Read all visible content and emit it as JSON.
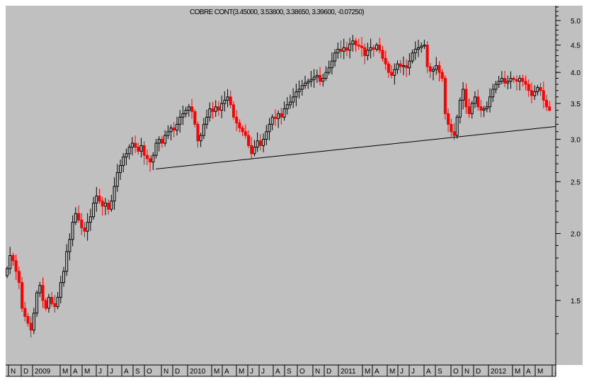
{
  "chart_data": {
    "type": "candlestick",
    "title": "COBRE CONT(3.45000, 3.53800, 3.38650, 3.39600, -0.07250)",
    "last_bar": {
      "open": 3.45,
      "high": 3.538,
      "low": 3.3865,
      "close": 3.396,
      "change": -0.0725
    },
    "y_scale": "log",
    "ylim": [
      1.2,
      5.3
    ],
    "y_ticks": [
      "1.5",
      "2.0",
      "2.5",
      "3.0",
      "3.5",
      "4.0",
      "4.5",
      "5.0"
    ],
    "x_tick_labels": [
      "N",
      "D",
      "2009",
      "M",
      "A",
      "M",
      "J",
      "J",
      "A",
      "S",
      "O",
      "N",
      "D",
      "2010",
      "M",
      "A",
      "M",
      "J",
      "J",
      "A",
      "S",
      "O",
      "N",
      "D",
      "2011",
      "M",
      "A",
      "M",
      "J",
      "J",
      "A",
      "S",
      "O",
      "N",
      "D",
      "2012",
      "M",
      "A",
      "M",
      "."
    ],
    "grid": false,
    "colors": {
      "background": "#c0c0c0",
      "up": "#000000",
      "down": "#ff0000",
      "trendline": "#000000"
    },
    "weekly_closes": [
      1.72,
      1.82,
      1.78,
      1.7,
      1.62,
      1.45,
      1.4,
      1.36,
      1.32,
      1.42,
      1.55,
      1.6,
      1.5,
      1.45,
      1.52,
      1.48,
      1.46,
      1.52,
      1.62,
      1.7,
      1.85,
      1.95,
      2.1,
      2.18,
      2.12,
      2.05,
      2.02,
      2.1,
      2.15,
      2.28,
      2.35,
      2.3,
      2.25,
      2.28,
      2.22,
      2.3,
      2.45,
      2.6,
      2.68,
      2.78,
      2.82,
      2.9,
      2.95,
      2.9,
      2.85,
      2.92,
      2.8,
      2.76,
      2.72,
      2.8,
      2.95,
      3.0,
      2.95,
      3.05,
      3.1,
      3.15,
      3.12,
      3.2,
      3.3,
      3.35,
      3.4,
      3.45,
      3.38,
      3.2,
      2.98,
      3.05,
      3.2,
      3.3,
      3.42,
      3.38,
      3.45,
      3.4,
      3.5,
      3.55,
      3.6,
      3.48,
      3.3,
      3.22,
      3.15,
      3.1,
      3.05,
      2.92,
      2.82,
      2.9,
      2.98,
      2.92,
      3.0,
      3.1,
      3.2,
      3.3,
      3.28,
      3.35,
      3.3,
      3.42,
      3.48,
      3.52,
      3.6,
      3.68,
      3.72,
      3.78,
      3.82,
      3.85,
      3.88,
      3.92,
      3.95,
      3.85,
      3.9,
      4.0,
      4.08,
      4.2,
      4.35,
      4.42,
      4.38,
      4.45,
      4.4,
      4.52,
      4.58,
      4.5,
      4.48,
      4.45,
      4.3,
      4.4,
      4.45,
      4.42,
      4.5,
      4.4,
      4.25,
      4.15,
      4.0,
      3.95,
      4.05,
      4.15,
      4.1,
      4.12,
      4.08,
      4.2,
      4.35,
      4.42,
      4.45,
      4.48,
      4.5,
      4.1,
      4.02,
      4.05,
      4.12,
      4.0,
      3.9,
      3.35,
      3.2,
      3.1,
      3.05,
      3.3,
      3.55,
      3.72,
      3.45,
      3.35,
      3.5,
      3.6,
      3.45,
      3.4,
      3.42,
      3.45,
      3.6,
      3.72,
      3.8,
      3.85,
      3.9,
      3.82,
      3.85,
      3.9,
      3.88,
      3.85,
      3.9,
      3.85,
      3.8,
      3.7,
      3.62,
      3.68,
      3.75,
      3.7,
      3.55,
      3.45,
      3.396
    ],
    "trendline": {
      "start_price": 2.64,
      "end_price": 3.17
    }
  }
}
